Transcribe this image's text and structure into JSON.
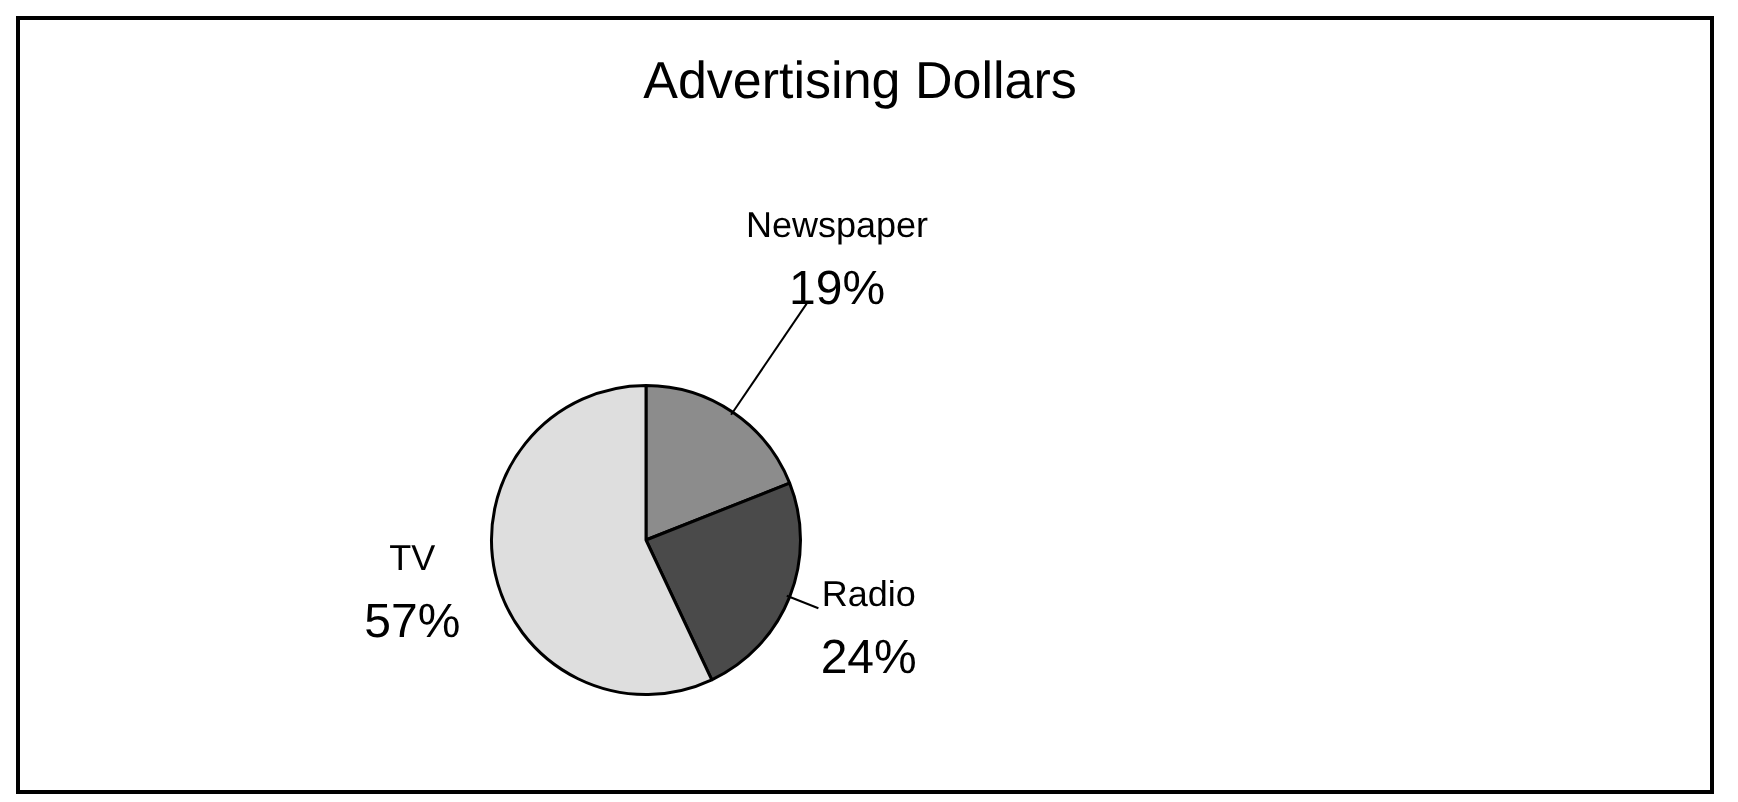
{
  "chart_data": {
    "type": "pie",
    "title": "Advertising Dollars",
    "categories": [
      "Newspaper",
      "Radio",
      "TV"
    ],
    "values": [
      19,
      24,
      57
    ],
    "value_labels": [
      "19%",
      "24%",
      "57%"
    ],
    "colors": [
      "#8c8c8c",
      "#4a4a4a",
      "#dedede"
    ],
    "legend": false
  }
}
